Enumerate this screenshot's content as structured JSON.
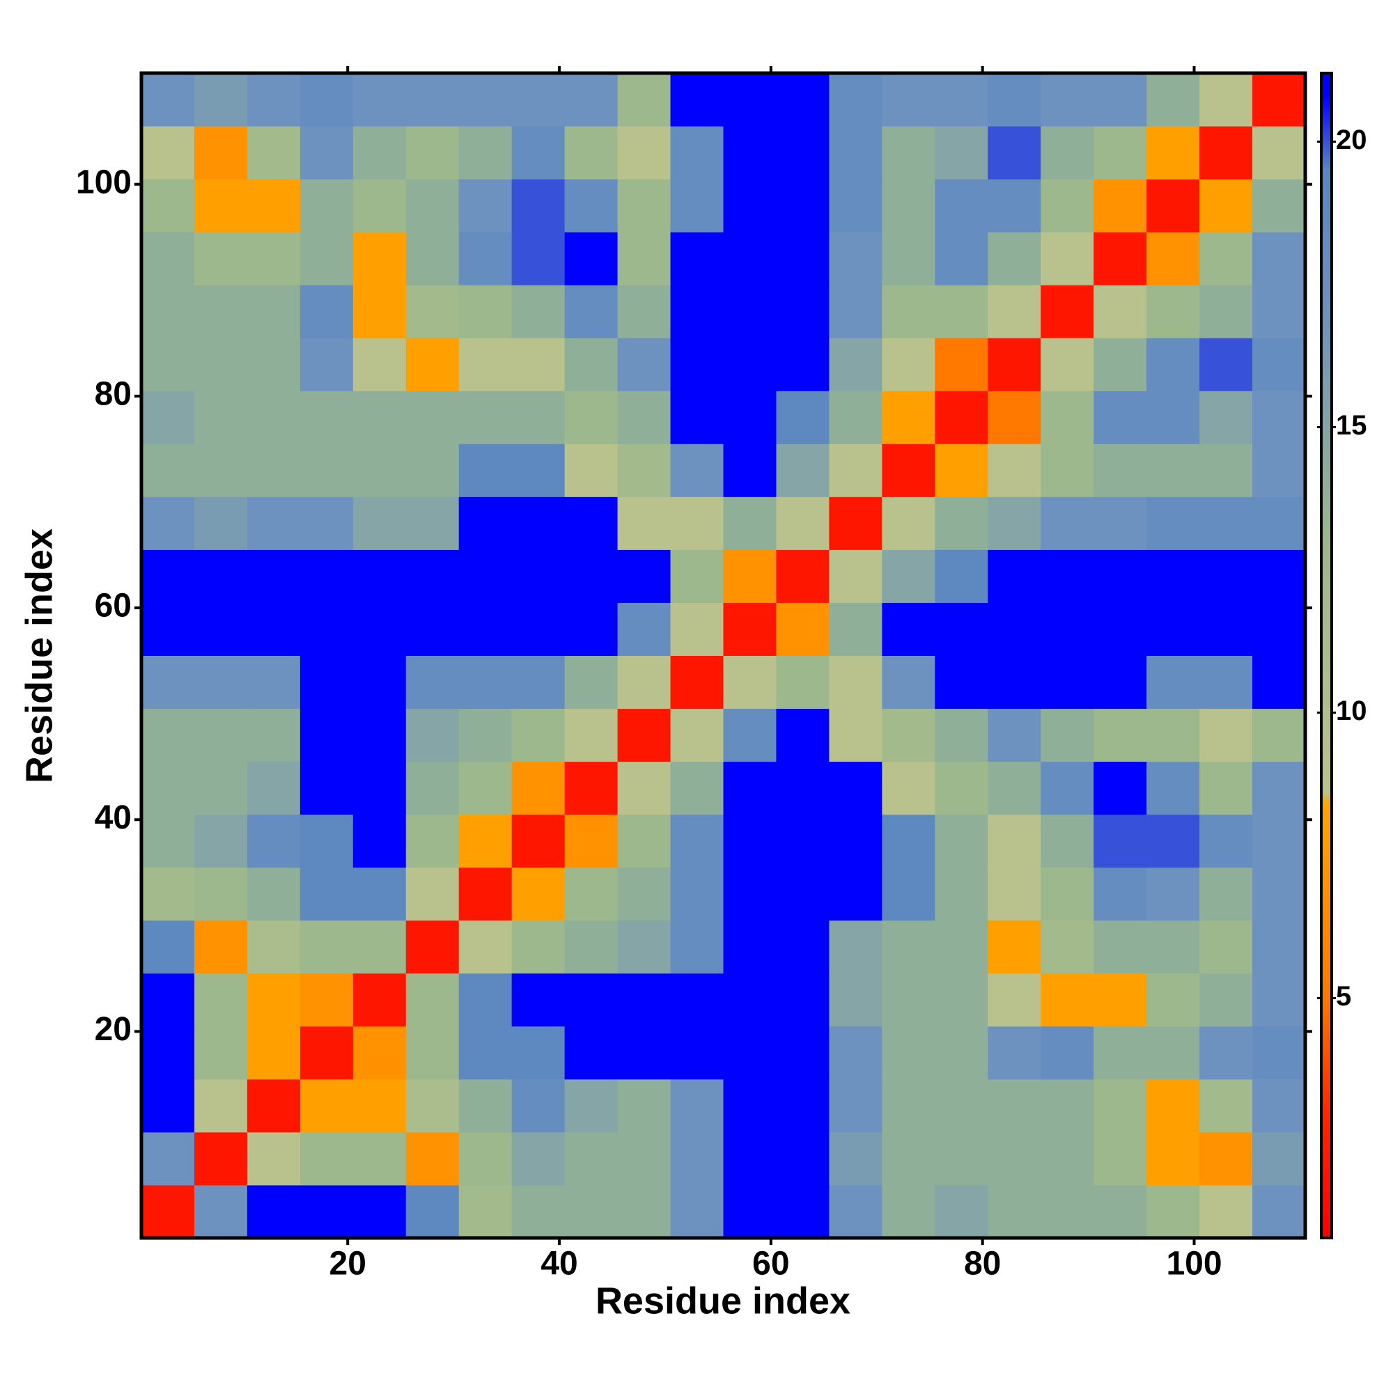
{
  "chart_data": {
    "type": "heatmap",
    "xlabel": "Residue index",
    "ylabel": "Residue index",
    "x": [
      3,
      8,
      13,
      18,
      23,
      28,
      33,
      38,
      43,
      48,
      53,
      58,
      63,
      68,
      73,
      78,
      83,
      88,
      93,
      98,
      103,
      108
    ],
    "y": [
      3,
      8,
      13,
      18,
      23,
      28,
      33,
      38,
      43,
      48,
      53,
      58,
      63,
      68,
      73,
      78,
      83,
      88,
      93,
      98,
      103,
      108
    ],
    "z": [
      [
        2,
        17,
        21,
        21,
        21,
        19,
        12,
        14,
        14,
        14,
        17,
        21,
        21,
        17,
        14,
        15,
        14,
        14,
        14,
        13,
        9,
        17
      ],
      [
        17,
        2,
        9,
        13,
        13,
        7,
        13,
        15,
        14,
        14,
        17,
        21,
        21,
        16,
        14,
        14,
        14,
        14,
        13,
        8,
        7,
        16
      ],
      [
        21,
        9,
        2,
        8,
        8,
        11,
        14,
        18,
        15,
        14,
        17,
        21,
        21,
        17,
        14,
        14,
        14,
        14,
        13,
        8,
        12,
        17
      ],
      [
        21,
        13,
        8,
        2,
        7,
        13,
        19,
        19,
        21,
        21,
        21,
        21,
        21,
        17,
        14,
        14,
        17,
        18,
        14,
        14,
        17,
        18
      ],
      [
        21,
        13,
        8,
        7,
        2,
        13,
        19,
        21,
        21,
        21,
        21,
        21,
        21,
        15,
        14,
        14,
        9,
        8,
        8,
        13,
        14,
        17
      ],
      [
        19,
        7,
        11,
        13,
        13,
        2,
        9,
        13,
        14,
        15,
        18,
        21,
        21,
        15,
        14,
        14,
        8,
        12,
        14,
        14,
        13,
        17
      ],
      [
        12,
        13,
        14,
        19,
        19,
        9,
        2,
        8,
        13,
        14,
        18,
        21,
        21,
        21,
        19,
        14,
        9,
        13,
        18,
        17,
        14,
        17
      ],
      [
        14,
        15,
        18,
        19,
        21,
        13,
        8,
        2,
        7,
        13,
        18,
        21,
        21,
        21,
        19,
        14,
        9,
        14,
        20,
        20,
        18,
        17
      ],
      [
        14,
        14,
        15,
        21,
        21,
        14,
        13,
        7,
        2,
        9,
        14,
        21,
        21,
        21,
        9,
        13,
        14,
        18,
        21,
        18,
        13,
        17
      ],
      [
        14,
        14,
        14,
        21,
        21,
        15,
        14,
        13,
        9,
        2,
        9,
        18,
        21,
        9,
        12,
        14,
        17,
        14,
        13,
        13,
        9,
        13
      ],
      [
        17,
        17,
        17,
        21,
        21,
        18,
        18,
        18,
        14,
        9,
        2,
        9,
        13,
        9,
        17,
        21,
        21,
        21,
        21,
        18,
        18,
        21
      ],
      [
        21,
        21,
        21,
        21,
        21,
        21,
        21,
        21,
        21,
        18,
        9,
        2,
        7,
        14,
        21,
        21,
        21,
        21,
        21,
        21,
        21,
        21
      ],
      [
        21,
        21,
        21,
        21,
        21,
        21,
        21,
        21,
        21,
        21,
        13,
        7,
        2,
        9,
        15,
        19,
        21,
        21,
        21,
        21,
        21,
        21
      ],
      [
        17,
        16,
        17,
        17,
        15,
        15,
        21,
        21,
        21,
        9,
        9,
        14,
        9,
        2,
        9,
        14,
        15,
        17,
        17,
        18,
        18,
        18
      ],
      [
        14,
        14,
        14,
        14,
        14,
        14,
        19,
        19,
        9,
        12,
        17,
        21,
        15,
        9,
        2,
        8,
        9,
        13,
        14,
        14,
        14,
        17
      ],
      [
        15,
        14,
        14,
        14,
        14,
        14,
        14,
        14,
        13,
        14,
        21,
        21,
        19,
        14,
        8,
        2,
        5,
        13,
        18,
        18,
        15,
        17
      ],
      [
        14,
        14,
        14,
        17,
        9,
        8,
        9,
        9,
        14,
        17,
        21,
        21,
        21,
        15,
        9,
        5,
        2,
        9,
        14,
        18,
        20,
        18
      ],
      [
        14,
        14,
        14,
        18,
        8,
        12,
        13,
        14,
        18,
        14,
        21,
        21,
        21,
        17,
        13,
        13,
        9,
        2,
        9,
        13,
        14,
        17
      ],
      [
        14,
        13,
        13,
        14,
        8,
        14,
        18,
        20,
        21,
        13,
        21,
        21,
        21,
        17,
        14,
        18,
        14,
        9,
        2,
        7,
        13,
        17
      ],
      [
        13,
        8,
        8,
        14,
        13,
        14,
        17,
        20,
        18,
        13,
        18,
        21,
        21,
        18,
        14,
        18,
        18,
        13,
        7,
        2,
        8,
        14
      ],
      [
        9,
        7,
        12,
        17,
        14,
        13,
        14,
        18,
        13,
        9,
        18,
        21,
        21,
        18,
        14,
        15,
        20,
        14,
        13,
        8,
        2,
        9
      ],
      [
        17,
        16,
        17,
        18,
        17,
        17,
        17,
        17,
        17,
        13,
        21,
        21,
        21,
        18,
        17,
        17,
        18,
        17,
        17,
        14,
        9,
        2
      ]
    ],
    "xlim": [
      0.5,
      110.5
    ],
    "ylim": [
      0.5,
      110.5
    ],
    "xticks": [
      20,
      40,
      60,
      80,
      100
    ],
    "yticks": [
      20,
      40,
      60,
      80,
      100
    ],
    "zlim": [
      0.8,
      21.2
    ],
    "zticks": [
      5,
      10,
      15,
      20
    ],
    "colorscale": [
      [
        0.8,
        "#ff0000"
      ],
      [
        3,
        "#ff2800"
      ],
      [
        5,
        "#ff7800"
      ],
      [
        8.4,
        "#ffa500"
      ],
      [
        8.6,
        "#bcc28c"
      ],
      [
        13,
        "#9cb88c"
      ],
      [
        17,
        "#6d92bf"
      ],
      [
        19.5,
        "#5a86c0"
      ],
      [
        20.8,
        "#0000ff"
      ],
      [
        21.2,
        "#0000ff"
      ]
    ]
  }
}
